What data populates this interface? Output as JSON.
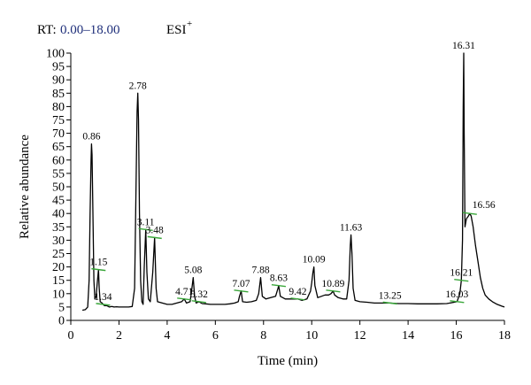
{
  "header": {
    "rt_label": "RT:",
    "rt_range": "0.00–18.00",
    "ionization": "ESI",
    "ionization_sup": "+"
  },
  "chart_data": {
    "type": "line",
    "title": "",
    "xlabel": "Time (min)",
    "ylabel": "Relative abundance",
    "xlim": [
      0,
      18
    ],
    "ylim": [
      0,
      100
    ],
    "xticks": [
      0,
      2,
      4,
      6,
      8,
      10,
      12,
      14,
      16,
      18
    ],
    "yticks": [
      0,
      5,
      10,
      15,
      20,
      25,
      30,
      35,
      40,
      45,
      50,
      55,
      60,
      65,
      70,
      75,
      80,
      85,
      90,
      95,
      100
    ],
    "grid": false,
    "line_color": "#000000",
    "marker_color": "#3aa63a",
    "peaks": [
      {
        "label": "0.86",
        "x": 0.86,
        "y": 66
      },
      {
        "label": "1.15",
        "x": 1.15,
        "y": 19
      },
      {
        "label": "1.34",
        "x": 1.34,
        "y": 6
      },
      {
        "label": "2.78",
        "x": 2.78,
        "y": 85
      },
      {
        "label": "3.11",
        "x": 3.11,
        "y": 34
      },
      {
        "label": "3.48",
        "x": 3.48,
        "y": 31
      },
      {
        "label": "4.71",
        "x": 4.71,
        "y": 8
      },
      {
        "label": "5.08",
        "x": 5.08,
        "y": 16
      },
      {
        "label": "5.32",
        "x": 5.32,
        "y": 7
      },
      {
        "label": "7.07",
        "x": 7.07,
        "y": 11
      },
      {
        "label": "7.88",
        "x": 7.88,
        "y": 16
      },
      {
        "label": "8.63",
        "x": 8.63,
        "y": 13
      },
      {
        "label": "9.42",
        "x": 9.42,
        "y": 8
      },
      {
        "label": "10.09",
        "x": 10.09,
        "y": 20
      },
      {
        "label": "10.89",
        "x": 10.89,
        "y": 11
      },
      {
        "label": "11.63",
        "x": 11.63,
        "y": 32
      },
      {
        "label": "13.25",
        "x": 13.25,
        "y": 6.5
      },
      {
        "label": "16.03",
        "x": 16.03,
        "y": 7
      },
      {
        "label": "16.21",
        "x": 16.21,
        "y": 15
      },
      {
        "label": "16.31",
        "x": 16.31,
        "y": 100
      },
      {
        "label": "16.56",
        "x": 16.56,
        "y": 40
      }
    ],
    "trace": [
      [
        0.48,
        3.8
      ],
      [
        0.6,
        4
      ],
      [
        0.7,
        5
      ],
      [
        0.76,
        15
      ],
      [
        0.8,
        40
      ],
      [
        0.84,
        60
      ],
      [
        0.86,
        66
      ],
      [
        0.88,
        62
      ],
      [
        0.92,
        40
      ],
      [
        0.96,
        15
      ],
      [
        1.0,
        8
      ],
      [
        1.05,
        9
      ],
      [
        1.1,
        14
      ],
      [
        1.15,
        19
      ],
      [
        1.18,
        12
      ],
      [
        1.22,
        7
      ],
      [
        1.3,
        6.5
      ],
      [
        1.34,
        6
      ],
      [
        1.4,
        5.5
      ],
      [
        1.5,
        5.5
      ],
      [
        1.6,
        5
      ],
      [
        1.7,
        5.2
      ],
      [
        1.8,
        5
      ],
      [
        1.9,
        5.1
      ],
      [
        2.0,
        5
      ],
      [
        2.2,
        5
      ],
      [
        2.4,
        5
      ],
      [
        2.55,
        5.2
      ],
      [
        2.65,
        12
      ],
      [
        2.7,
        45
      ],
      [
        2.75,
        78
      ],
      [
        2.78,
        85
      ],
      [
        2.81,
        75
      ],
      [
        2.85,
        40
      ],
      [
        2.9,
        15
      ],
      [
        2.95,
        7
      ],
      [
        3.0,
        6
      ],
      [
        3.05,
        20
      ],
      [
        3.11,
        34
      ],
      [
        3.16,
        18
      ],
      [
        3.22,
        8
      ],
      [
        3.3,
        7
      ],
      [
        3.4,
        18
      ],
      [
        3.48,
        31
      ],
      [
        3.54,
        12
      ],
      [
        3.6,
        7
      ],
      [
        3.8,
        6.5
      ],
      [
        4.0,
        6
      ],
      [
        4.2,
        6
      ],
      [
        4.4,
        6.5
      ],
      [
        4.6,
        7
      ],
      [
        4.71,
        8
      ],
      [
        4.8,
        6.5
      ],
      [
        4.95,
        7
      ],
      [
        5.0,
        10
      ],
      [
        5.08,
        16
      ],
      [
        5.14,
        9
      ],
      [
        5.2,
        6.5
      ],
      [
        5.32,
        7
      ],
      [
        5.45,
        6.3
      ],
      [
        5.6,
        6.2
      ],
      [
        5.8,
        6
      ],
      [
        6.0,
        6
      ],
      [
        6.2,
        6
      ],
      [
        6.4,
        6
      ],
      [
        6.6,
        6.2
      ],
      [
        6.8,
        6.5
      ],
      [
        6.95,
        7
      ],
      [
        7.0,
        9
      ],
      [
        7.07,
        11
      ],
      [
        7.13,
        7
      ],
      [
        7.3,
        6.8
      ],
      [
        7.5,
        7
      ],
      [
        7.7,
        7.5
      ],
      [
        7.8,
        10
      ],
      [
        7.88,
        16
      ],
      [
        7.95,
        9
      ],
      [
        8.1,
        8
      ],
      [
        8.3,
        8.5
      ],
      [
        8.5,
        9
      ],
      [
        8.6,
        12
      ],
      [
        8.63,
        13
      ],
      [
        8.7,
        9
      ],
      [
        8.9,
        8
      ],
      [
        9.1,
        8
      ],
      [
        9.3,
        8
      ],
      [
        9.42,
        8
      ],
      [
        9.6,
        7.5
      ],
      [
        9.8,
        8
      ],
      [
        9.95,
        11
      ],
      [
        10.0,
        14
      ],
      [
        10.05,
        18
      ],
      [
        10.09,
        20
      ],
      [
        10.13,
        13
      ],
      [
        10.25,
        8.5
      ],
      [
        10.4,
        9
      ],
      [
        10.55,
        9.5
      ],
      [
        10.7,
        9.5
      ],
      [
        10.8,
        10
      ],
      [
        10.89,
        11
      ],
      [
        10.95,
        9.5
      ],
      [
        11.1,
        8.5
      ],
      [
        11.3,
        8
      ],
      [
        11.45,
        8
      ],
      [
        11.55,
        15
      ],
      [
        11.6,
        28
      ],
      [
        11.63,
        32
      ],
      [
        11.67,
        25
      ],
      [
        11.72,
        12
      ],
      [
        11.8,
        7.5
      ],
      [
        12.0,
        7
      ],
      [
        12.3,
        6.8
      ],
      [
        12.6,
        6.5
      ],
      [
        12.9,
        6.5
      ],
      [
        13.25,
        6.5
      ],
      [
        13.6,
        6.3
      ],
      [
        14.0,
        6.3
      ],
      [
        14.4,
        6.2
      ],
      [
        14.8,
        6.2
      ],
      [
        15.2,
        6.2
      ],
      [
        15.6,
        6.3
      ],
      [
        16.03,
        7
      ],
      [
        16.15,
        10
      ],
      [
        16.21,
        15
      ],
      [
        16.26,
        30
      ],
      [
        16.29,
        80
      ],
      [
        16.31,
        100
      ],
      [
        16.33,
        70
      ],
      [
        16.36,
        35
      ],
      [
        16.42,
        38
      ],
      [
        16.5,
        39
      ],
      [
        16.56,
        40
      ],
      [
        16.62,
        39
      ],
      [
        16.7,
        35
      ],
      [
        16.8,
        28
      ],
      [
        16.9,
        22
      ],
      [
        17.0,
        16
      ],
      [
        17.1,
        12
      ],
      [
        17.2,
        9.5
      ],
      [
        17.35,
        8
      ],
      [
        17.5,
        7
      ],
      [
        17.7,
        6
      ],
      [
        17.9,
        5.3
      ],
      [
        18.0,
        5
      ]
    ]
  }
}
